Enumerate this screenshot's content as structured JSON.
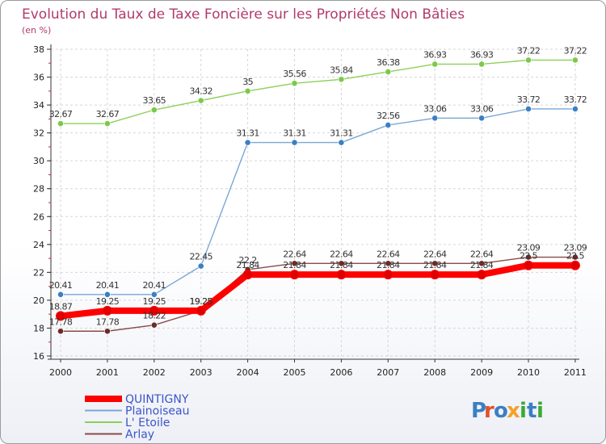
{
  "title": "Evolution du Taux de Taxe Foncière sur les Propriétés Non Bâties",
  "unit_label": "(en %)",
  "logo": {
    "letters": [
      {
        "ch": "P",
        "color": "#3b7fc4"
      },
      {
        "ch": "r",
        "color": "#e2502d"
      },
      {
        "ch": "o",
        "color": "#3b7fc4"
      },
      {
        "ch": "x",
        "color": "#f2a12a"
      },
      {
        "ch": "i",
        "color": "#3aaa35"
      },
      {
        "ch": "t",
        "color": "#3b7fc4"
      },
      {
        "ch": "i",
        "color": "#3aaa35"
      }
    ]
  },
  "chart_data": {
    "type": "line",
    "title": "Evolution du Taux de Taxe Foncière sur les Propriétés Non Bâties",
    "ylabel": "(en %)",
    "xlabel": "",
    "ylim": [
      16,
      38
    ],
    "yticks": [
      "16",
      "18",
      "20",
      "22",
      "24",
      "26",
      "28",
      "30",
      "32",
      "34",
      "36",
      "38"
    ],
    "x": [
      "2000",
      "2001",
      "2002",
      "2003",
      "2004",
      "2005",
      "2006",
      "2007",
      "2008",
      "2009",
      "2010",
      "2011"
    ],
    "grid": true,
    "legend_position": "bottom-left",
    "series": [
      {
        "name": "L' Etoile",
        "color": "#8ccf5a",
        "marker": "#7cc94a",
        "values": [
          32.67,
          32.67,
          33.65,
          34.32,
          35,
          35.56,
          35.84,
          36.38,
          36.93,
          36.93,
          37.22,
          37.22
        ],
        "labels": [
          "32.67",
          "32.67",
          "33.65",
          "34.32",
          "35",
          "35.56",
          "35.84",
          "36.38",
          "36.93",
          "36.93",
          "37.22",
          "37.22"
        ]
      },
      {
        "name": "Plainoiseau",
        "color": "#7aa7d6",
        "marker": "#3b7fc4",
        "values": [
          20.41,
          20.41,
          20.41,
          22.45,
          31.31,
          31.31,
          31.31,
          32.56,
          33.06,
          33.06,
          33.72,
          33.72
        ],
        "labels": [
          "20.41",
          "20.41",
          "20.41",
          "22.45",
          "31.31",
          "31.31",
          "31.31",
          "32.56",
          "33.06",
          "33.06",
          "33.72",
          "33.72"
        ]
      },
      {
        "name": "Arlay",
        "color": "#8a4a4a",
        "marker": "#6e2a2a",
        "values": [
          17.78,
          17.78,
          18.22,
          19.25,
          22.2,
          22.64,
          22.64,
          22.64,
          22.64,
          22.64,
          23.09,
          23.09
        ],
        "labels": [
          "17.78",
          "17.78",
          "18.22",
          "19.25",
          "22.2",
          "22.64",
          "22.64",
          "22.64",
          "22.64",
          "22.64",
          "23.09",
          "23.09"
        ]
      },
      {
        "name": "QUINTIGNY",
        "color": "#ff0000",
        "marker": "#e00000",
        "values": [
          18.87,
          19.25,
          19.25,
          19.25,
          21.84,
          21.84,
          21.84,
          21.84,
          21.84,
          21.84,
          22.5,
          22.5
        ],
        "labels": [
          "18.87",
          "19.25",
          "19.25",
          "19.25",
          "21.84",
          "21.84",
          "21.84",
          "21.84",
          "21.84",
          "21.84",
          "22.5",
          "22.5"
        ]
      }
    ],
    "legend_order": [
      "QUINTIGNY",
      "Plainoiseau",
      "L' Etoile",
      "Arlay"
    ]
  }
}
